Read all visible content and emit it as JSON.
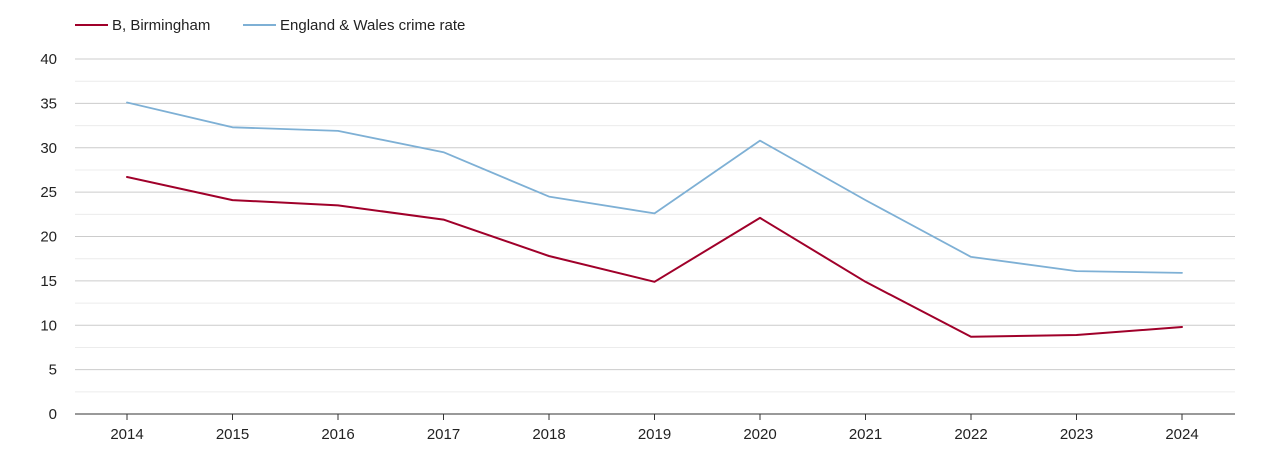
{
  "chart_data": {
    "type": "line",
    "x": [
      2014,
      2015,
      2016,
      2017,
      2018,
      2019,
      2020,
      2021,
      2022,
      2023,
      2024
    ],
    "series": [
      {
        "name": "B, Birmingham",
        "color": "#a0002a",
        "values": [
          26.7,
          24.1,
          23.5,
          21.9,
          17.8,
          14.9,
          22.1,
          14.9,
          8.7,
          8.9,
          9.8
        ]
      },
      {
        "name": "England & Wales crime rate",
        "color": "#7eb0d5",
        "values": [
          35.1,
          32.3,
          31.9,
          29.5,
          24.5,
          22.6,
          30.8,
          24.1,
          17.7,
          16.1,
          15.9
        ]
      }
    ],
    "ylim": [
      0,
      40
    ],
    "yticks": [
      0,
      5,
      10,
      15,
      20,
      25,
      30,
      35,
      40
    ],
    "xlabel": "",
    "ylabel": "",
    "title": "",
    "grid": true,
    "legend_position": "top-left"
  }
}
